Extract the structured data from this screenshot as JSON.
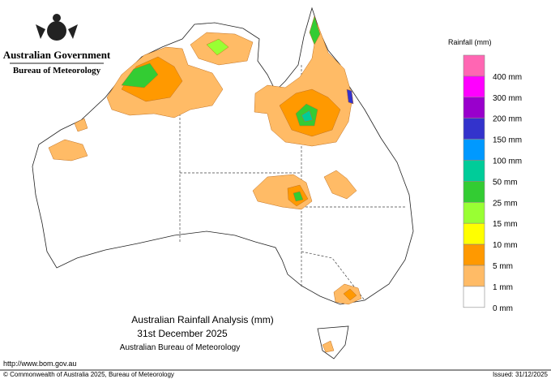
{
  "header": {
    "agency": "Australian Government",
    "bureau": "Bureau of Meteorology"
  },
  "legend": {
    "title": "Rainfall (mm)",
    "colors": [
      "#ff66b3",
      "#ff00ff",
      "#9900cc",
      "#3333cc",
      "#0099ff",
      "#00cc99",
      "#33cc33",
      "#99ff33",
      "#ffff00",
      "#ff9900",
      "#ffbb66",
      "#ffffff"
    ],
    "labels": [
      "400 mm",
      "300 mm",
      "200 mm",
      "150 mm",
      "100 mm",
      "50 mm",
      "25 mm",
      "15 mm",
      "10 mm",
      "5 mm",
      "1 mm",
      "0 mm"
    ]
  },
  "title": {
    "line1": "Australian Rainfall Analysis (mm)",
    "line2": "31st December 2025",
    "line3": "Australian Bureau of Meteorology"
  },
  "footer": {
    "url": "http://www.bom.gov.au",
    "copyright": "© Commonwealth of Australia 2025, Bureau of Meteorology",
    "issued": "Issued: 31/12/2025"
  }
}
